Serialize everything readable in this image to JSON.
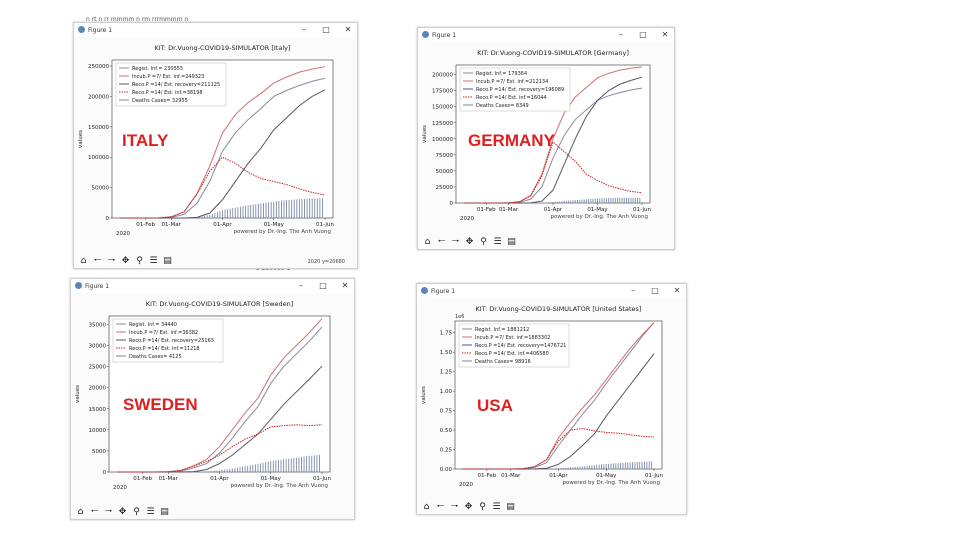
{
  "stray_text": {
    "top": "n    rt    n   rr   mmmm   n    rm    rrrmmmm   n",
    "middle": "3    250000   1"
  },
  "windows": [
    {
      "id": "italy",
      "window_title": "Figure 1",
      "country_label": "ITALY",
      "coords_text": "2020  y=20680",
      "chart_data": {
        "type": "line",
        "title": "KIT: Dr.Vuong-COVID19-SIMULATOR [Italy]",
        "xlabel": "",
        "ylabel": "values",
        "ylim": [
          0,
          260000
        ],
        "yticks": [
          0,
          50000,
          100000,
          150000,
          200000,
          250000
        ],
        "ytick_labels": [
          "0",
          "50000",
          "100000",
          "150000",
          "200000",
          "250000"
        ],
        "xticks": [
          "01-Feb",
          "01-Mar",
          "01-Apr",
          "01-May",
          "01-Jun"
        ],
        "year_label": "2020",
        "footer": "powered by Dr.-Ing. The Anh Vuong",
        "x": [
          "Jan-01",
          "Jan-15",
          "Feb-01",
          "Feb-15",
          "Mar-01",
          "Mar-08",
          "Mar-15",
          "Mar-22",
          "Apr-01",
          "Apr-08",
          "Apr-15",
          "Apr-22",
          "May-01",
          "May-08",
          "May-15",
          "May-22",
          "Jun-01"
        ],
        "series": [
          {
            "name": "Regist. Inf.= 230555",
            "color": "#8a8aa0",
            "dashed": false,
            "values": [
              0,
              0,
              0,
              0,
              1000,
              6000,
              24000,
              60000,
              110000,
              140000,
              162000,
              180000,
              200000,
              210000,
              218000,
              225000,
              230000
            ]
          },
          {
            "name": "Incub.P =7/ Est. inf.=249323",
            "color": "#d07070",
            "dashed": false,
            "values": [
              0,
              0,
              0,
              0,
              2000,
              10000,
              40000,
              85000,
              140000,
              170000,
              190000,
              205000,
              222000,
              232000,
              240000,
              245000,
              249000
            ]
          },
          {
            "name": "Reco.P =14/ Est. recovery=211125",
            "color": "#555566",
            "dashed": false,
            "values": [
              0,
              0,
              0,
              0,
              0,
              0,
              1000,
              8000,
              30000,
              60000,
              90000,
              115000,
              145000,
              165000,
              185000,
              200000,
              211000
            ]
          },
          {
            "name": "Reco.P =14/ Est. inf.=38198",
            "color": "#cc2222",
            "dashed": true,
            "values": [
              0,
              0,
              0,
              0,
              2000,
              10000,
              39000,
              77000,
              100000,
              90000,
              75000,
              65000,
              60000,
              55000,
              48000,
              42000,
              38000
            ]
          },
          {
            "name": "Deaths Cases= 32955",
            "color": "#7a8aa8",
            "dashed": false,
            "values": [
              0,
              0,
              0,
              0,
              0,
              300,
              1500,
              5000,
              13000,
              17000,
              21000,
              24000,
              27000,
              29500,
              31000,
              32000,
              32900
            ]
          }
        ]
      }
    },
    {
      "id": "germany",
      "window_title": "Figure 1",
      "country_label": "GERMANY",
      "coords_text": "",
      "chart_data": {
        "type": "line",
        "title": "KIT: Dr.Vuong-COVID19-SIMULATOR [Germany]",
        "xlabel": "",
        "ylabel": "values",
        "ylim": [
          0,
          215000
        ],
        "yticks": [
          0,
          25000,
          50000,
          75000,
          100000,
          125000,
          150000,
          175000,
          200000
        ],
        "ytick_labels": [
          "0",
          "25000",
          "50000",
          "75000",
          "100000",
          "125000",
          "150000",
          "175000",
          "200000"
        ],
        "xticks": [
          "01-Feb",
          "01-Mar",
          "01-Apr",
          "01-May",
          "01-Jun"
        ],
        "year_label": "2020",
        "footer": "powered by Dr.-Ing. The Anh Vuong",
        "x": [
          "Jan-01",
          "Jan-15",
          "Feb-01",
          "Feb-15",
          "Mar-01",
          "Mar-08",
          "Mar-15",
          "Mar-22",
          "Apr-01",
          "Apr-08",
          "Apr-15",
          "Apr-22",
          "May-01",
          "May-08",
          "May-15",
          "May-22",
          "Jun-01"
        ],
        "series": [
          {
            "name": "Regist. Inf.= 179364",
            "color": "#8a8aa0",
            "dashed": false,
            "values": [
              0,
              0,
              0,
              0,
              100,
              1000,
              6000,
              25000,
              70000,
              105000,
              130000,
              145000,
              160000,
              167000,
              172000,
              176000,
              179000
            ]
          },
          {
            "name": "Incub.P =7/ Est. inf.=212134",
            "color": "#d07070",
            "dashed": false,
            "values": [
              0,
              0,
              0,
              0,
              200,
              2000,
              12000,
              45000,
              100000,
              140000,
              165000,
              180000,
              195000,
              202000,
              207000,
              210000,
              212000
            ]
          },
          {
            "name": "Reco.P =14/ Est. recovery=196089",
            "color": "#555566",
            "dashed": false,
            "values": [
              0,
              0,
              0,
              0,
              0,
              0,
              200,
              3000,
              20000,
              60000,
              100000,
              135000,
              160000,
              175000,
              185000,
              191000,
              196000
            ]
          },
          {
            "name": "Reco.P =14/ Est. inf.=16044",
            "color": "#cc2222",
            "dashed": true,
            "values": [
              0,
              0,
              0,
              0,
              200,
              2000,
              11000,
              42000,
              95000,
              80000,
              65000,
              45000,
              35000,
              27000,
              22000,
              18000,
              16000
            ]
          },
          {
            "name": "Deaths Cases= 8349",
            "color": "#7a8aa8",
            "dashed": false,
            "values": [
              0,
              0,
              0,
              0,
              0,
              0,
              50,
              300,
              1500,
              3000,
              4500,
              5800,
              7000,
              7600,
              8000,
              8200,
              8350
            ]
          }
        ]
      }
    },
    {
      "id": "sweden",
      "window_title": "Figure 1",
      "country_label": "SWEDEN",
      "coords_text": "",
      "chart_data": {
        "type": "line",
        "title": "KIT: Dr.Vuong-COVID19-SIMULATOR [Sweden]",
        "xlabel": "",
        "ylabel": "values",
        "ylim": [
          0,
          37000
        ],
        "yticks": [
          0,
          5000,
          10000,
          15000,
          20000,
          25000,
          30000,
          35000
        ],
        "ytick_labels": [
          "0",
          "5000",
          "10000",
          "15000",
          "20000",
          "25000",
          "30000",
          "35000"
        ],
        "xticks": [
          "01-Feb",
          "01-Mar",
          "01-Apr",
          "01-May",
          "01-Jun"
        ],
        "year_label": "2020",
        "footer": "powered by Dr.-Ing. The Anh Vuong",
        "x": [
          "Jan-01",
          "Jan-15",
          "Feb-01",
          "Feb-15",
          "Mar-01",
          "Mar-08",
          "Mar-15",
          "Mar-22",
          "Apr-01",
          "Apr-08",
          "Apr-15",
          "Apr-22",
          "May-01",
          "May-08",
          "May-15",
          "May-22",
          "Jun-01"
        ],
        "series": [
          {
            "name": "Regist. Inf.= 34440",
            "color": "#8a8aa0",
            "dashed": false,
            "values": [
              0,
              0,
              0,
              0,
              20,
              200,
              1000,
              2000,
              4500,
              8000,
              12000,
              15500,
              21000,
              25000,
              28000,
              31000,
              34400
            ]
          },
          {
            "name": "Incub.P =7/ Est. inf.=36382",
            "color": "#d07070",
            "dashed": false,
            "values": [
              0,
              0,
              0,
              0,
              50,
              400,
              1500,
              3000,
              6000,
              10000,
              14000,
              17500,
              23000,
              27000,
              30000,
              33000,
              36400
            ]
          },
          {
            "name": "Reco.P =14/ Est. recovery=25163",
            "color": "#555566",
            "dashed": false,
            "values": [
              0,
              0,
              0,
              0,
              0,
              0,
              100,
              600,
              2000,
              4000,
              6500,
              9000,
              12500,
              16000,
              19000,
              22000,
              25100
            ]
          },
          {
            "name": "Reco.P =14/ Est. inf.=11218",
            "color": "#cc2222",
            "dashed": true,
            "values": [
              0,
              0,
              0,
              0,
              50,
              400,
              1400,
              2500,
              4000,
              6000,
              7800,
              9000,
              10700,
              11000,
              11200,
              11000,
              11200
            ]
          },
          {
            "name": "Deaths Cases= 4125",
            "color": "#7a8aa8",
            "dashed": false,
            "values": [
              0,
              0,
              0,
              0,
              0,
              0,
              10,
              100,
              400,
              800,
              1400,
              1900,
              2600,
              3000,
              3400,
              3800,
              4125
            ]
          }
        ]
      }
    },
    {
      "id": "usa",
      "window_title": "Figure 1",
      "country_label": "USA",
      "coords_text": "",
      "chart_data": {
        "type": "line",
        "title": "KIT: Dr.Vuong-COVID19-SIMULATOR [United States]",
        "xlabel": "",
        "ylabel": "values",
        "y_multiplier": "1e6",
        "ylim": [
          0,
          1.9
        ],
        "yticks": [
          0,
          0.25,
          0.5,
          0.75,
          1.0,
          1.25,
          1.5,
          1.75
        ],
        "ytick_labels": [
          "0.00",
          "0.25",
          "0.50",
          "0.75",
          "1.00",
          "1.25",
          "1.50",
          "1.75"
        ],
        "xticks": [
          "01-Feb",
          "01-Mar",
          "01-Apr",
          "01-May",
          "01-Jun"
        ],
        "year_label": "2020",
        "footer": "powered by Dr.-Ing. The Anh Vuong",
        "x": [
          "Jan-01",
          "Jan-15",
          "Feb-01",
          "Feb-15",
          "Mar-01",
          "Mar-08",
          "Mar-15",
          "Mar-22",
          "Apr-01",
          "Apr-08",
          "Apr-15",
          "Apr-22",
          "May-01",
          "May-08",
          "May-15",
          "May-22",
          "Jun-01"
        ],
        "series": [
          {
            "name": "Regist. Inf.= 1881212",
            "color": "#8a8aa0",
            "dashed": false,
            "values": [
              0,
              0,
              0,
              0,
              0,
              0.002,
              0.02,
              0.08,
              0.3,
              0.5,
              0.7,
              0.88,
              1.1,
              1.3,
              1.5,
              1.7,
              1.88
            ]
          },
          {
            "name": "Incub.P =7/ Est. inf.=1883302",
            "color": "#d07070",
            "dashed": false,
            "values": [
              0,
              0,
              0,
              0,
              0,
              0.004,
              0.03,
              0.12,
              0.4,
              0.6,
              0.78,
              0.95,
              1.15,
              1.35,
              1.55,
              1.72,
              1.88
            ]
          },
          {
            "name": "Reco.P =14/ Est. recovery=1476721",
            "color": "#555566",
            "dashed": false,
            "values": [
              0,
              0,
              0,
              0,
              0,
              0,
              0.002,
              0.01,
              0.06,
              0.16,
              0.3,
              0.45,
              0.68,
              0.88,
              1.08,
              1.28,
              1.48
            ]
          },
          {
            "name": "Reco.P =14/ Est. inf.=406580",
            "color": "#cc2222",
            "dashed": true,
            "values": [
              0,
              0,
              0,
              0,
              0,
              0.004,
              0.03,
              0.12,
              0.36,
              0.5,
              0.52,
              0.49,
              0.47,
              0.46,
              0.44,
              0.42,
              0.41
            ]
          },
          {
            "name": "Deaths Cases= 98916",
            "color": "#7a8aa8",
            "dashed": false,
            "values": [
              0,
              0,
              0,
              0,
              0,
              0,
              0.0005,
              0.002,
              0.01,
              0.02,
              0.035,
              0.05,
              0.065,
              0.075,
              0.085,
              0.093,
              0.099
            ]
          }
        ]
      }
    }
  ]
}
